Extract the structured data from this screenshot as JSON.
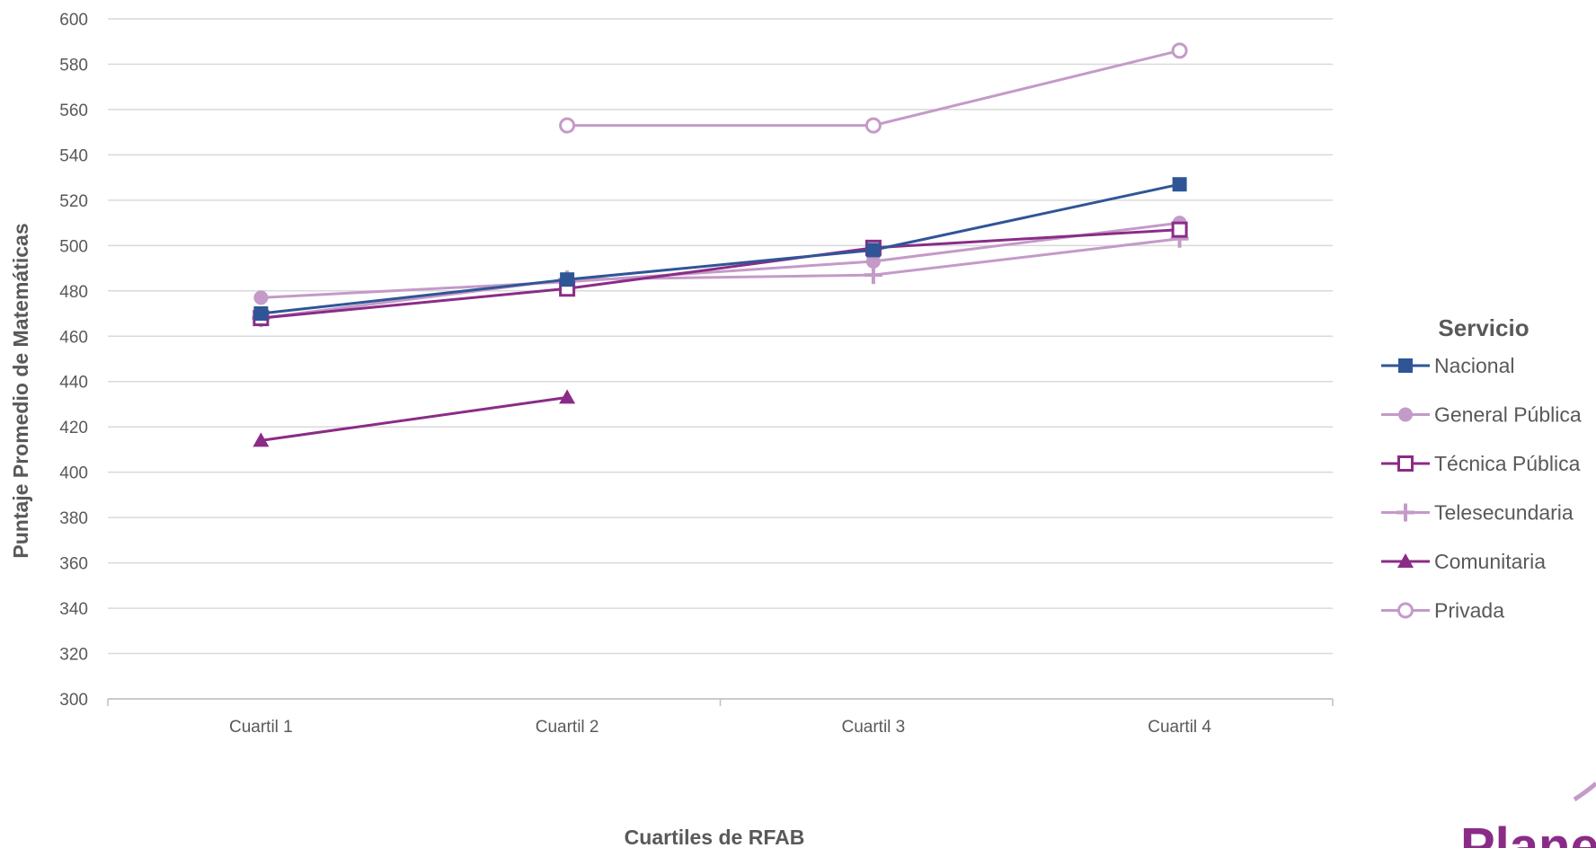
{
  "chart_data": {
    "type": "line",
    "categories": [
      "Cuartil 1",
      "Cuartil 2",
      "Cuartil 3",
      "Cuartil 4"
    ],
    "xlabel": "Cuartiles de RFAB",
    "ylabel": "Puntaje Promedio de Matemáticas",
    "ylim": [
      300,
      600
    ],
    "yticks": [
      300,
      320,
      340,
      360,
      380,
      400,
      420,
      440,
      460,
      480,
      500,
      520,
      540,
      560,
      580,
      600
    ],
    "grid": true,
    "legend_title": "Servicio",
    "legend_position": "right",
    "series": [
      {
        "name": "Nacional",
        "values": [
          470,
          485,
          498,
          527
        ],
        "color": "#2f5597",
        "marker": "square"
      },
      {
        "name": "General Pública",
        "values": [
          477,
          484,
          493,
          510
        ],
        "color": "#c49ac8",
        "marker": "circle"
      },
      {
        "name": "Técnica Pública",
        "values": [
          468,
          481,
          499,
          507
        ],
        "color": "#8a2c87",
        "marker": "square-open"
      },
      {
        "name": "Telesecundaria",
        "values": [
          468,
          485,
          487,
          503
        ],
        "color": "#c49ac8",
        "marker": "plus"
      },
      {
        "name": "Comunitaria",
        "values": [
          414,
          433,
          null,
          null
        ],
        "color": "#8a2c87",
        "marker": "triangle"
      },
      {
        "name": "Privada",
        "values": [
          null,
          553,
          553,
          586
        ],
        "color": "#c49ac8",
        "marker": "circle-open"
      }
    ]
  },
  "logo": {
    "text": "Planea"
  }
}
